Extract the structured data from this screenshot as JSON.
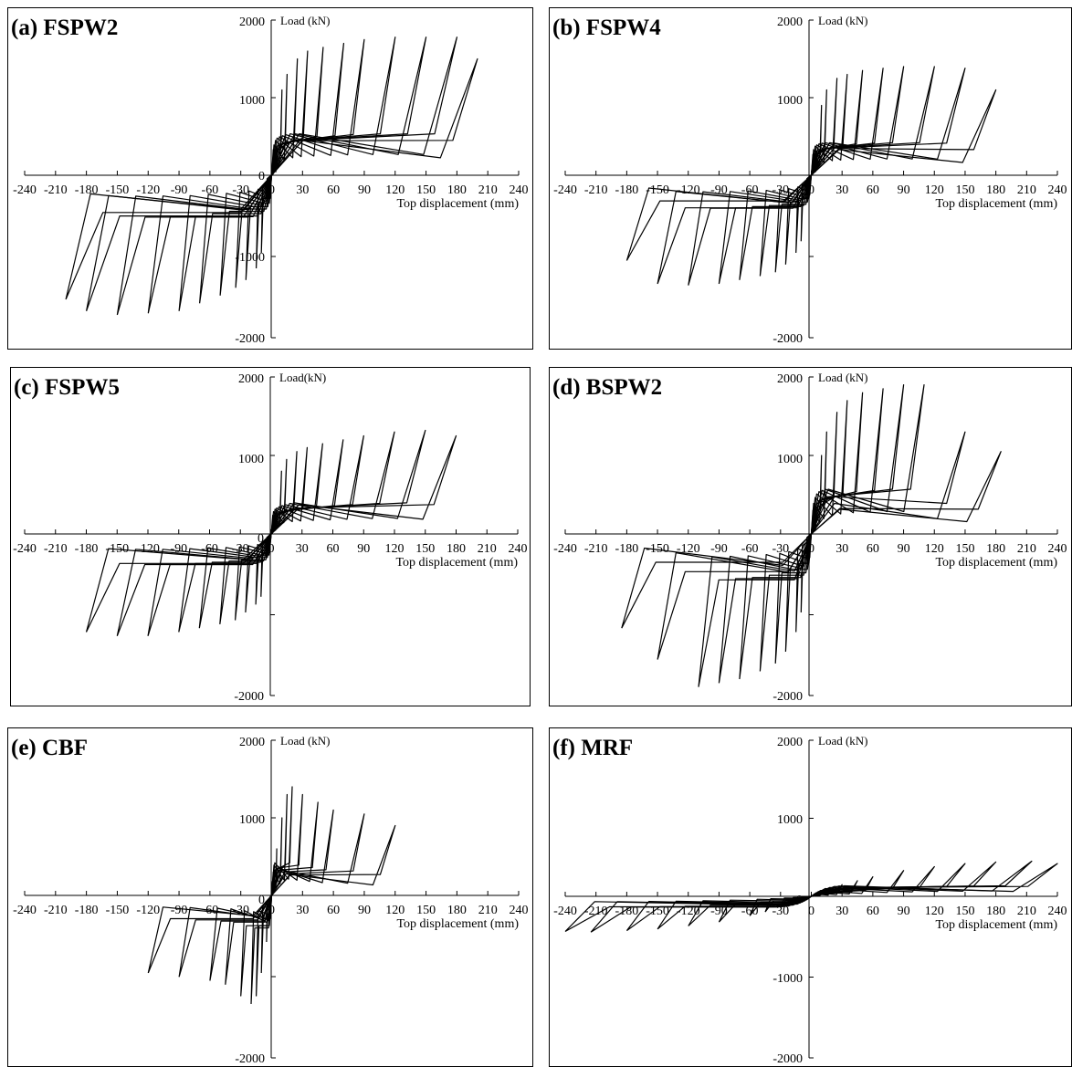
{
  "chart_data": [
    {
      "type": "line",
      "title": "(a) FSPW2",
      "xlabel": "Top displacement (mm)",
      "ylabel": "Load (kN)",
      "xlim": [
        -240,
        240
      ],
      "ylim": [
        -2000,
        2000
      ],
      "x_ticks": [
        -240,
        -210,
        -180,
        -150,
        -120,
        -90,
        -60,
        -30,
        0,
        30,
        60,
        90,
        120,
        150,
        180,
        210,
        240
      ],
      "y_tick_labels": [
        "2000",
        "1000",
        "0",
        "-1000",
        "-2000"
      ],
      "series": [
        {
          "values": [
            {
              "d": 5,
              "pos": 300,
              "neg": -300
            },
            {
              "d": 10,
              "pos": 1100,
              "neg": -1000
            },
            {
              "d": 15,
              "pos": 1300,
              "neg": -1200
            },
            {
              "d": 25,
              "pos": 1500,
              "neg": -1350
            },
            {
              "d": 35,
              "pos": 1600,
              "neg": -1450
            },
            {
              "d": 50,
              "pos": 1650,
              "neg": -1550
            },
            {
              "d": 70,
              "pos": 1700,
              "neg": -1650
            },
            {
              "d": 90,
              "pos": 1750,
              "neg": -1750
            },
            {
              "d": 120,
              "pos": 1780,
              "neg": -1780
            },
            {
              "d": 150,
              "pos": 1780,
              "neg": -1800
            },
            {
              "d": 180,
              "pos": 1780,
              "neg": -1750
            },
            {
              "d": 200,
              "pos": 1500,
              "neg": -1600
            }
          ]
        }
      ]
    },
    {
      "type": "line",
      "title": "(b) FSPW4",
      "xlabel": "Top displacement (mm)",
      "ylabel": "Load (kN)",
      "xlim": [
        -240,
        240
      ],
      "ylim": [
        -2000,
        2000
      ],
      "x_ticks": [
        -240,
        -210,
        -180,
        -150,
        -120,
        -90,
        -60,
        -30,
        0,
        30,
        60,
        90,
        120,
        150,
        180,
        210,
        240
      ],
      "y_tick_labels": [
        "2000",
        "1000",
        "",
        "",
        "-2000"
      ],
      "series": [
        {
          "values": [
            {
              "d": 5,
              "pos": 300,
              "neg": -300
            },
            {
              "d": 10,
              "pos": 900,
              "neg": -850
            },
            {
              "d": 15,
              "pos": 1100,
              "neg": -1000
            },
            {
              "d": 25,
              "pos": 1250,
              "neg": -1150
            },
            {
              "d": 35,
              "pos": 1300,
              "neg": -1250
            },
            {
              "d": 50,
              "pos": 1350,
              "neg": -1300
            },
            {
              "d": 70,
              "pos": 1380,
              "neg": -1350
            },
            {
              "d": 90,
              "pos": 1400,
              "neg": -1400
            },
            {
              "d": 120,
              "pos": 1400,
              "neg": -1420
            },
            {
              "d": 150,
              "pos": 1380,
              "neg": -1400
            },
            {
              "d": 180,
              "pos": 1100,
              "neg": -1100
            }
          ]
        }
      ]
    },
    {
      "type": "line",
      "title": "(c) FSPW5",
      "xlabel": "Top displacement (mm)",
      "ylabel": "Load(kN)",
      "xlim": [
        -240,
        240
      ],
      "ylim": [
        -2000,
        2000
      ],
      "x_ticks": [
        -240,
        -210,
        -180,
        -150,
        -120,
        -90,
        -60,
        -30,
        0,
        30,
        60,
        90,
        120,
        150,
        180,
        210,
        240
      ],
      "y_tick_labels": [
        "2000",
        "1000",
        "0",
        "",
        "-2000"
      ],
      "series": [
        {
          "values": [
            {
              "d": 5,
              "pos": 300,
              "neg": -300
            },
            {
              "d": 10,
              "pos": 800,
              "neg": -800
            },
            {
              "d": 15,
              "pos": 950,
              "neg": -900
            },
            {
              "d": 25,
              "pos": 1050,
              "neg": -1000
            },
            {
              "d": 35,
              "pos": 1100,
              "neg": -1100
            },
            {
              "d": 50,
              "pos": 1150,
              "neg": -1150
            },
            {
              "d": 70,
              "pos": 1200,
              "neg": -1200
            },
            {
              "d": 90,
              "pos": 1250,
              "neg": -1250
            },
            {
              "d": 120,
              "pos": 1300,
              "neg": -1300
            },
            {
              "d": 150,
              "pos": 1320,
              "neg": -1300
            },
            {
              "d": 180,
              "pos": 1250,
              "neg": -1250
            }
          ]
        }
      ]
    },
    {
      "type": "line",
      "title": "(d) BSPW2",
      "xlabel": "Top displacement (mm)",
      "ylabel": "Load (kN)",
      "xlim": [
        -240,
        240
      ],
      "ylim": [
        -2000,
        2000
      ],
      "x_ticks": [
        -240,
        -210,
        -180,
        -150,
        -120,
        -90,
        -60,
        -30,
        0,
        30,
        60,
        90,
        120,
        150,
        180,
        210,
        240
      ],
      "y_tick_labels": [
        "2000",
        "1000",
        "",
        "",
        "-2000"
      ],
      "series": [
        {
          "values": [
            {
              "d": 5,
              "pos": 300,
              "neg": -300
            },
            {
              "d": 10,
              "pos": 1000,
              "neg": -1000
            },
            {
              "d": 15,
              "pos": 1300,
              "neg": -1250
            },
            {
              "d": 25,
              "pos": 1550,
              "neg": -1500
            },
            {
              "d": 35,
              "pos": 1700,
              "neg": -1650
            },
            {
              "d": 50,
              "pos": 1800,
              "neg": -1750
            },
            {
              "d": 70,
              "pos": 1850,
              "neg": -1850
            },
            {
              "d": 90,
              "pos": 1900,
              "neg": -1900
            },
            {
              "d": 110,
              "pos": 1900,
              "neg": -1950
            },
            {
              "d": 150,
              "pos": 1300,
              "neg": -1600
            },
            {
              "d": 185,
              "pos": 1050,
              "neg": -1200
            }
          ]
        }
      ]
    },
    {
      "type": "line",
      "title": "(e) CBF",
      "xlabel": "Top displacement (mm)",
      "ylabel": "Load (kN)",
      "xlim": [
        -240,
        240
      ],
      "ylim": [
        -2000,
        2000
      ],
      "x_ticks": [
        -240,
        -210,
        -180,
        -150,
        -120,
        -90,
        -60,
        -30,
        0,
        30,
        60,
        90,
        120,
        150,
        180,
        210,
        240
      ],
      "y_tick_labels": [
        "2000",
        "1000",
        "0",
        "",
        "-2000"
      ],
      "series": [
        {
          "values": [
            {
              "d": 5,
              "pos": 600,
              "neg": -600
            },
            {
              "d": 10,
              "pos": 1000,
              "neg": -1000
            },
            {
              "d": 15,
              "pos": 1300,
              "neg": -1300
            },
            {
              "d": 20,
              "pos": 1400,
              "neg": -1400
            },
            {
              "d": 30,
              "pos": 1300,
              "neg": -1300
            },
            {
              "d": 45,
              "pos": 1200,
              "neg": -1150
            },
            {
              "d": 60,
              "pos": 1100,
              "neg": -1100
            },
            {
              "d": 90,
              "pos": 1050,
              "neg": -1050
            },
            {
              "d": 120,
              "pos": 900,
              "neg": -1000
            }
          ]
        }
      ]
    },
    {
      "type": "line",
      "title": "(f) MRF",
      "xlabel": "Top displacement (mm)",
      "ylabel": "Load (kN)",
      "xlim": [
        -240,
        240
      ],
      "ylim": [
        -2000,
        2000
      ],
      "x_ticks": [
        -240,
        -210,
        -180,
        -150,
        -120,
        -90,
        -60,
        -30,
        0,
        30,
        60,
        90,
        120,
        150,
        180,
        210,
        240
      ],
      "y_tick_labels": [
        "2000",
        "1000",
        "0",
        "-1000",
        "-2000"
      ],
      "series": [
        {
          "values": [
            {
              "d": 10,
              "pos": 50,
              "neg": -50
            },
            {
              "d": 20,
              "pos": 100,
              "neg": -100
            },
            {
              "d": 30,
              "pos": 150,
              "neg": -150
            },
            {
              "d": 45,
              "pos": 200,
              "neg": -200
            },
            {
              "d": 60,
              "pos": 250,
              "neg": -250
            },
            {
              "d": 90,
              "pos": 330,
              "neg": -330
            },
            {
              "d": 120,
              "pos": 380,
              "neg": -380
            },
            {
              "d": 150,
              "pos": 420,
              "neg": -420
            },
            {
              "d": 180,
              "pos": 440,
              "neg": -440
            },
            {
              "d": 215,
              "pos": 450,
              "neg": -460
            },
            {
              "d": 240,
              "pos": 420,
              "neg": -450
            }
          ]
        }
      ]
    }
  ]
}
